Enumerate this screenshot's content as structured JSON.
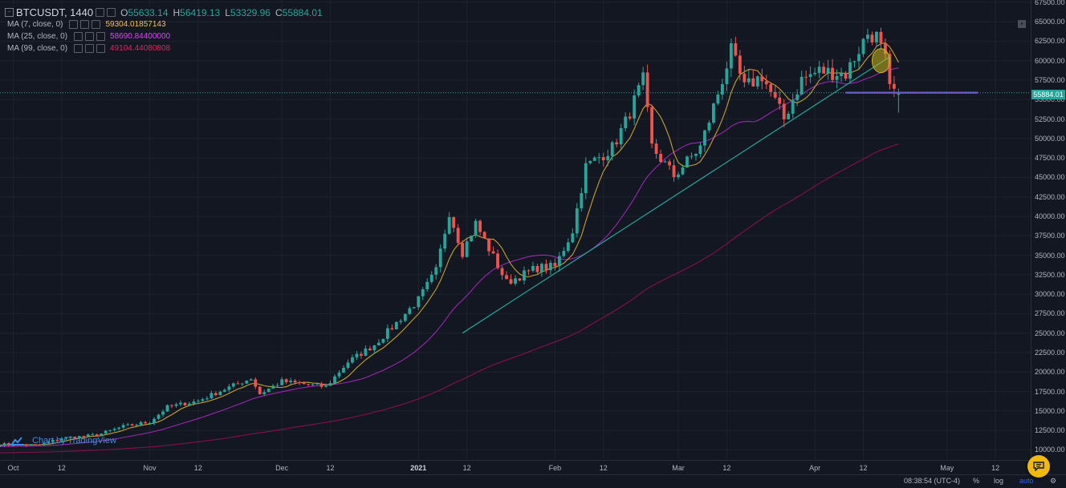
{
  "header": {
    "symbol": "BTCUSDT, 1440",
    "ohlc": {
      "o_label": "O",
      "o": "55633.14",
      "h_label": "H",
      "h": "56419.13",
      "l_label": "L",
      "l": "53329.96",
      "c_label": "C",
      "c": "55884.01"
    },
    "mas": [
      {
        "name": "MA (7, close, 0)",
        "value": "59304.01857143",
        "color": "#f5c242"
      },
      {
        "name": "MA (25, close, 0)",
        "value": "58690.84400000",
        "color": "#e040fb"
      },
      {
        "name": "MA (99, close, 0)",
        "value": "49104.44080808",
        "color": "#e91e63"
      }
    ]
  },
  "watermark": "Chart by TradingView",
  "current_price_label": "55884.01",
  "bottom_bar": {
    "time": "08:38:54 (UTC-4)",
    "percent": "%",
    "log": "log",
    "auto": "auto"
  },
  "colors": {
    "up": "#26a69a",
    "down": "#ef5350",
    "ma7": "#c7a02d",
    "ma25": "#9c27b0",
    "ma99": "#880e4f",
    "trendline": "#26a69a",
    "hline": "#7b48d6"
  },
  "chart_data": {
    "type": "candlestick",
    "interval": "1D",
    "y_axis": {
      "ticks": [
        10000,
        12500,
        15000,
        17500,
        20000,
        22500,
        25000,
        27500,
        30000,
        32500,
        35000,
        37500,
        40000,
        42500,
        45000,
        47500,
        50000,
        52500,
        55000,
        57500,
        60000,
        62500,
        65000,
        67500
      ],
      "range": [
        8700,
        67800
      ]
    },
    "x_axis": {
      "labels": [
        {
          "text": "Oct",
          "date": "2020-10-01"
        },
        {
          "text": "12",
          "date": "2020-10-12"
        },
        {
          "text": "Nov",
          "date": "2020-11-01"
        },
        {
          "text": "12",
          "date": "2020-11-12"
        },
        {
          "text": "Dec",
          "date": "2020-12-01"
        },
        {
          "text": "12",
          "date": "2020-12-12"
        },
        {
          "text": "2021",
          "date": "2021-01-01",
          "strong": true
        },
        {
          "text": "12",
          "date": "2021-01-12"
        },
        {
          "text": "Feb",
          "date": "2021-02-01"
        },
        {
          "text": "12",
          "date": "2021-02-12"
        },
        {
          "text": "Mar",
          "date": "2021-03-01"
        },
        {
          "text": "12",
          "date": "2021-03-12"
        },
        {
          "text": "Apr",
          "date": "2021-04-01"
        },
        {
          "text": "12",
          "date": "2021-04-12"
        },
        {
          "text": "May",
          "date": "2021-05-01"
        },
        {
          "text": "12",
          "date": "2021-05-12"
        }
      ],
      "range": [
        "2020-09-28",
        "2021-05-20"
      ]
    },
    "close_key": [
      {
        "date": "2020-09-28",
        "close": 10700
      },
      {
        "date": "2020-10-07",
        "close": 10600
      },
      {
        "date": "2020-10-12",
        "close": 11500
      },
      {
        "date": "2020-10-20",
        "close": 11900
      },
      {
        "date": "2020-10-26",
        "close": 13000
      },
      {
        "date": "2020-11-01",
        "close": 13600
      },
      {
        "date": "2020-11-05",
        "close": 15500
      },
      {
        "date": "2020-11-12",
        "close": 16300
      },
      {
        "date": "2020-11-18",
        "close": 17800
      },
      {
        "date": "2020-11-24",
        "close": 19200
      },
      {
        "date": "2020-11-26",
        "close": 17200
      },
      {
        "date": "2020-12-01",
        "close": 18800
      },
      {
        "date": "2020-12-08",
        "close": 18300
      },
      {
        "date": "2020-12-11",
        "close": 18100
      },
      {
        "date": "2020-12-16",
        "close": 21300
      },
      {
        "date": "2020-12-22",
        "close": 23500
      },
      {
        "date": "2020-12-27",
        "close": 26300
      },
      {
        "date": "2021-01-01",
        "close": 29300
      },
      {
        "date": "2021-01-05",
        "close": 33000
      },
      {
        "date": "2021-01-08",
        "close": 40600
      },
      {
        "date": "2021-01-11",
        "close": 35400
      },
      {
        "date": "2021-01-14",
        "close": 39100
      },
      {
        "date": "2021-01-21",
        "close": 31500
      },
      {
        "date": "2021-01-28",
        "close": 33400
      },
      {
        "date": "2021-02-01",
        "close": 33500
      },
      {
        "date": "2021-02-05",
        "close": 38200
      },
      {
        "date": "2021-02-08",
        "close": 46400
      },
      {
        "date": "2021-02-14",
        "close": 48800
      },
      {
        "date": "2021-02-17",
        "close": 52100
      },
      {
        "date": "2021-02-21",
        "close": 57500
      },
      {
        "date": "2021-02-23",
        "close": 48900
      },
      {
        "date": "2021-02-28",
        "close": 45200
      },
      {
        "date": "2021-03-06",
        "close": 48900
      },
      {
        "date": "2021-03-10",
        "close": 55800
      },
      {
        "date": "2021-03-13",
        "close": 61200
      },
      {
        "date": "2021-03-16",
        "close": 56500
      },
      {
        "date": "2021-03-20",
        "close": 58100
      },
      {
        "date": "2021-03-25",
        "close": 52500
      },
      {
        "date": "2021-03-29",
        "close": 57600
      },
      {
        "date": "2021-04-02",
        "close": 58700
      },
      {
        "date": "2021-04-08",
        "close": 58300
      },
      {
        "date": "2021-04-13",
        "close": 63500
      },
      {
        "date": "2021-04-15",
        "close": 63100
      },
      {
        "date": "2021-04-17",
        "close": 60000
      },
      {
        "date": "2021-04-18",
        "close": 56200
      },
      {
        "date": "2021-04-20",
        "close": 55884
      }
    ],
    "drawings": {
      "trendline": [
        {
          "date": "2021-01-11",
          "price": 25000
        },
        {
          "date": "2021-04-18",
          "price": 60500
        }
      ],
      "horizontal_line": {
        "from": "2021-04-08",
        "to": "2021-05-08",
        "price": 55884
      },
      "highlight_ellipse": {
        "date": "2021-04-16",
        "price": 60000
      }
    }
  }
}
